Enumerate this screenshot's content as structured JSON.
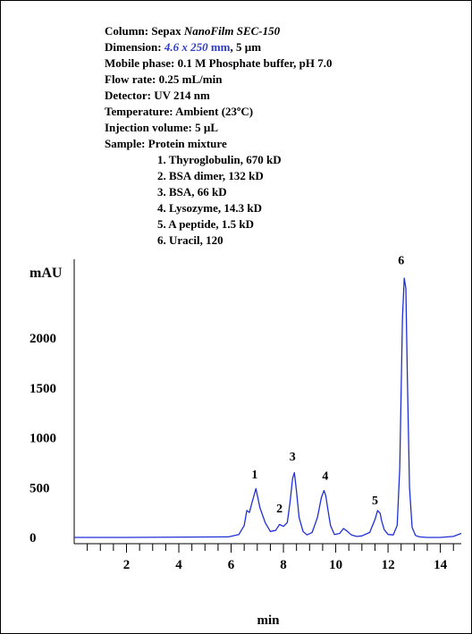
{
  "info": {
    "column_label": "Column: Sepax",
    "column_name": "NanoFilm SEC-150",
    "dimension_label": "Dimension:",
    "dimension_value": "4.6 x 250",
    "dimension_unit": "mm",
    "dimension_particle": ", 5 µm",
    "mobile_phase": "Mobile phase: 0.1 M Phosphate buffer, pH 7.0",
    "flow_rate": "Flow rate: 0.25 mL/min",
    "detector": "Detector: UV 214 nm",
    "temperature": "Temperature: Ambient (23ºC)",
    "injection_volume": "Injection volume: 5 µL",
    "sample": "Sample: Protein mixture",
    "sample_items": [
      "1. Thyroglobulin, 670 kD",
      "2. BSA dimer, 132 kD",
      "3. BSA, 66 kD",
      "4. Lysozyme, 14.3 kD",
      "5. A peptide, 1.5 kD",
      "6. Uracil, 120"
    ]
  },
  "colors": {
    "trace": "#1f2fd6",
    "axis": "#000000",
    "highlight": "#2e3cc8"
  },
  "chart_data": {
    "type": "line",
    "xlabel": "min",
    "ylabel": "mAU",
    "xlim": [
      0,
      14.8
    ],
    "ylim": [
      -30,
      2700
    ],
    "x_ticks": [
      2,
      4,
      6,
      8,
      10,
      12,
      14
    ],
    "y_ticks": [
      0,
      500,
      1000,
      1500,
      2000
    ],
    "grid": false,
    "series": [
      {
        "x": [
          0,
          2,
          5.9,
          6.3,
          6.5,
          6.6,
          6.7,
          6.8,
          6.95,
          7.1,
          7.3,
          7.5,
          7.7,
          7.85,
          8.0,
          8.15,
          8.25,
          8.35,
          8.42,
          8.5,
          8.6,
          8.75,
          8.9,
          9.1,
          9.3,
          9.45,
          9.55,
          9.62,
          9.7,
          9.8,
          9.95,
          10.15,
          10.3,
          10.45,
          10.6,
          10.8,
          11.0,
          11.3,
          11.5,
          11.6,
          11.7,
          11.75,
          11.85,
          12.0,
          12.2,
          12.35,
          12.45,
          12.55,
          12.62,
          12.68,
          12.74,
          12.82,
          12.92,
          13.05,
          13.2,
          13.5,
          14,
          14.5,
          14.8
        ],
        "y": [
          0,
          0,
          5,
          30,
          120,
          270,
          250,
          350,
          490,
          300,
          150,
          60,
          70,
          130,
          110,
          150,
          350,
          590,
          650,
          460,
          200,
          60,
          25,
          50,
          200,
          400,
          470,
          420,
          280,
          120,
          30,
          40,
          90,
          60,
          25,
          10,
          15,
          50,
          180,
          270,
          240,
          170,
          80,
          30,
          25,
          120,
          700,
          2200,
          2600,
          2500,
          1600,
          500,
          100,
          20,
          5,
          0,
          0,
          10,
          40
        ]
      }
    ],
    "peak_labels": [
      {
        "label": "1",
        "x": 6.9,
        "y": 590
      },
      {
        "label": "2",
        "x": 7.85,
        "y": 250
      },
      {
        "label": "3",
        "x": 8.35,
        "y": 770
      },
      {
        "label": "4",
        "x": 9.6,
        "y": 580
      },
      {
        "label": "5",
        "x": 11.5,
        "y": 330
      },
      {
        "label": "6",
        "x": 12.5,
        "y": 2740
      }
    ]
  }
}
